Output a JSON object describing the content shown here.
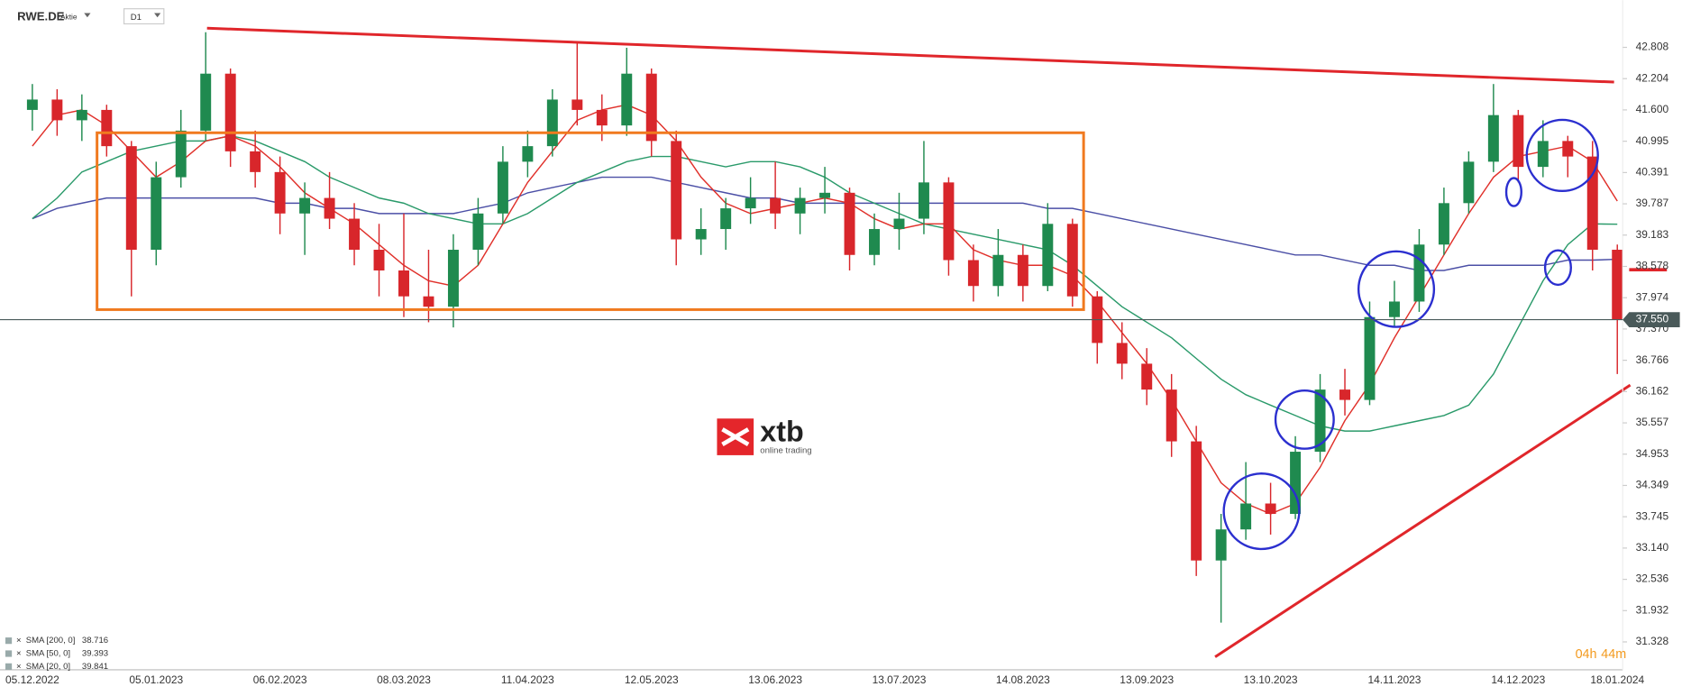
{
  "header": {
    "symbol": "RWE.DE",
    "kind": "Aktie",
    "timeframe": "D1"
  },
  "logo": {
    "brand": "xtb",
    "tagline": "online trading"
  },
  "countdown": {
    "hours": "04h",
    "minutes": "44m"
  },
  "chart_data": {
    "type": "candlestick",
    "categories": [
      "05.12.2022",
      null,
      null,
      null,
      null,
      "05.01.2023",
      null,
      null,
      null,
      null,
      "06.02.2023",
      null,
      null,
      null,
      null,
      "08.03.2023",
      null,
      null,
      null,
      null,
      "11.04.2023",
      null,
      null,
      null,
      null,
      "12.05.2023",
      null,
      null,
      null,
      null,
      "13.06.2023",
      null,
      null,
      null,
      null,
      "13.07.2023",
      null,
      null,
      null,
      null,
      "14.08.2023",
      null,
      null,
      null,
      null,
      "13.09.2023",
      null,
      null,
      null,
      null,
      "13.10.2023",
      null,
      null,
      null,
      null,
      "14.11.2023",
      null,
      null,
      null,
      null,
      "14.12.2023",
      null,
      null,
      null,
      "18.01.2024"
    ],
    "open": [
      41.6,
      41.8,
      41.4,
      41.6,
      40.9,
      38.9,
      40.3,
      41.2,
      42.3,
      40.8,
      40.4,
      39.6,
      39.9,
      39.5,
      38.9,
      38.5,
      38.0,
      37.8,
      38.9,
      39.6,
      40.6,
      40.9,
      41.8,
      41.6,
      41.3,
      42.3,
      41.0,
      39.1,
      39.3,
      39.7,
      39.9,
      39.6,
      39.9,
      40.0,
      38.8,
      39.3,
      39.5,
      40.2,
      38.7,
      38.2,
      38.8,
      38.2,
      39.4,
      38.0,
      37.1,
      36.7,
      36.2,
      35.2,
      32.9,
      33.5,
      34.0,
      33.8,
      35.0,
      36.2,
      36.0,
      37.6,
      37.9,
      39.0,
      39.8,
      40.6,
      41.5,
      40.5,
      41.0,
      40.7,
      38.9
    ],
    "high": [
      42.1,
      42.0,
      41.9,
      41.7,
      41.0,
      40.6,
      41.6,
      43.1,
      42.4,
      41.2,
      40.7,
      40.2,
      40.4,
      39.8,
      39.4,
      39.6,
      38.9,
      39.2,
      39.9,
      40.9,
      41.2,
      42.0,
      42.9,
      41.9,
      42.8,
      42.4,
      41.2,
      39.7,
      39.9,
      40.3,
      40.6,
      40.1,
      40.5,
      40.1,
      39.6,
      40.0,
      41.0,
      40.3,
      39.0,
      39.3,
      39.0,
      39.8,
      39.5,
      38.1,
      37.5,
      37.0,
      36.5,
      35.5,
      33.8,
      34.8,
      34.4,
      35.3,
      36.5,
      36.6,
      37.9,
      38.3,
      39.3,
      40.1,
      40.8,
      42.1,
      41.6,
      41.4,
      41.1,
      41.0,
      39.0
    ],
    "low": [
      41.2,
      41.1,
      41.0,
      40.7,
      38.0,
      38.6,
      40.1,
      41.0,
      40.5,
      40.1,
      39.2,
      38.8,
      39.3,
      38.6,
      38.0,
      37.6,
      37.5,
      37.4,
      38.6,
      39.4,
      40.3,
      40.7,
      41.3,
      41.0,
      41.1,
      40.7,
      38.6,
      38.8,
      38.9,
      39.4,
      39.3,
      39.2,
      39.6,
      38.5,
      38.6,
      38.9,
      39.2,
      38.4,
      37.9,
      38.0,
      37.9,
      38.1,
      37.8,
      36.7,
      36.4,
      35.9,
      34.9,
      32.6,
      31.7,
      33.3,
      33.4,
      33.7,
      34.8,
      35.7,
      35.9,
      37.4,
      37.7,
      38.8,
      39.6,
      40.4,
      40.2,
      40.3,
      40.3,
      38.5,
      36.5
    ],
    "close": [
      41.8,
      41.4,
      41.6,
      40.9,
      38.9,
      40.3,
      41.2,
      42.3,
      40.8,
      40.4,
      39.6,
      39.9,
      39.5,
      38.9,
      38.5,
      38.0,
      37.8,
      38.9,
      39.6,
      40.6,
      40.9,
      41.8,
      41.6,
      41.3,
      42.3,
      41.0,
      39.1,
      39.3,
      39.7,
      39.9,
      39.6,
      39.9,
      40.0,
      38.8,
      39.3,
      39.5,
      40.2,
      38.7,
      38.2,
      38.8,
      38.2,
      39.4,
      38.0,
      37.1,
      36.7,
      36.2,
      35.2,
      32.9,
      33.5,
      34.0,
      33.8,
      35.0,
      36.2,
      36.0,
      37.6,
      37.9,
      39.0,
      39.8,
      40.6,
      41.5,
      40.5,
      41.0,
      40.7,
      38.9,
      37.55
    ],
    "up_color": "#1f8a4f",
    "down_color": "#d8262b",
    "lines": [
      {
        "name": "SMA [200, 0]",
        "color": "#4b4fa6",
        "values": [
          39.5,
          39.7,
          39.8,
          39.9,
          39.9,
          39.9,
          39.9,
          39.9,
          39.9,
          39.9,
          39.8,
          39.8,
          39.7,
          39.7,
          39.6,
          39.6,
          39.6,
          39.6,
          39.7,
          39.8,
          40.0,
          40.1,
          40.2,
          40.3,
          40.3,
          40.3,
          40.2,
          40.1,
          40.0,
          39.9,
          39.9,
          39.8,
          39.8,
          39.8,
          39.8,
          39.8,
          39.8,
          39.8,
          39.8,
          39.8,
          39.8,
          39.7,
          39.7,
          39.6,
          39.5,
          39.4,
          39.3,
          39.2,
          39.1,
          39.0,
          38.9,
          38.8,
          38.8,
          38.7,
          38.6,
          38.6,
          38.5,
          38.5,
          38.6,
          38.6,
          38.6,
          38.6,
          38.7,
          38.7,
          38.716
        ]
      },
      {
        "name": "SMA [50, 0]",
        "color": "#2a9a6a",
        "values": [
          39.5,
          39.9,
          40.4,
          40.6,
          40.8,
          40.9,
          41.0,
          41.0,
          41.1,
          41.0,
          40.8,
          40.6,
          40.3,
          40.1,
          39.9,
          39.8,
          39.6,
          39.5,
          39.4,
          39.4,
          39.6,
          39.9,
          40.2,
          40.4,
          40.6,
          40.7,
          40.7,
          40.6,
          40.5,
          40.6,
          40.6,
          40.5,
          40.3,
          40.0,
          39.8,
          39.6,
          39.4,
          39.3,
          39.2,
          39.1,
          39.0,
          38.9,
          38.6,
          38.2,
          37.8,
          37.5,
          37.2,
          36.8,
          36.4,
          36.1,
          35.9,
          35.7,
          35.5,
          35.4,
          35.4,
          35.5,
          35.6,
          35.7,
          35.9,
          36.5,
          37.4,
          38.3,
          39.0,
          39.4,
          39.393
        ]
      },
      {
        "name": "SMA [20, 0]",
        "color": "#e0302a",
        "values": [
          40.9,
          41.5,
          41.6,
          41.3,
          40.8,
          40.3,
          40.6,
          41.0,
          41.1,
          40.9,
          40.5,
          40.0,
          39.7,
          39.4,
          39.0,
          38.6,
          38.3,
          38.2,
          38.6,
          39.4,
          40.2,
          40.8,
          41.4,
          41.6,
          41.7,
          41.5,
          41.0,
          40.3,
          39.8,
          39.6,
          39.7,
          39.8,
          39.9,
          39.8,
          39.5,
          39.3,
          39.4,
          39.4,
          38.9,
          38.7,
          38.6,
          38.6,
          38.4,
          37.9,
          37.3,
          36.7,
          36.0,
          35.2,
          34.4,
          34.0,
          33.8,
          34.0,
          34.7,
          35.6,
          36.3,
          37.2,
          38.0,
          38.8,
          39.6,
          40.3,
          40.7,
          40.8,
          40.9,
          40.6,
          39.841
        ]
      }
    ],
    "ylim": [
      30.81,
      43.72
    ],
    "yticks": [
      42.808,
      42.204,
      {
        "value": 41.6,
        "label": "41.600"
      },
      40.995,
      40.391,
      39.787,
      39.183,
      38.578,
      37.974,
      {
        "value": 37.37,
        "label": "37.370"
      },
      36.766,
      36.162,
      35.557,
      34.953,
      34.349,
      33.745,
      {
        "value": 33.14,
        "label": "33.140"
      },
      32.536,
      31.932,
      31.328
    ],
    "last_price": {
      "value": 37.55,
      "label": "37.550"
    }
  }
}
